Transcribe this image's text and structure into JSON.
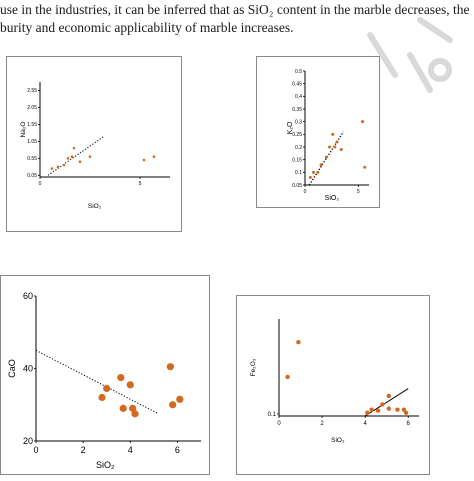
{
  "paragraph": {
    "line1": "use in the industries, it can be inferred that as SiO₂ content in the marble decreases, the",
    "line2": "burity and economic applicability of marble increases."
  },
  "colors": {
    "point": "#d2691e",
    "axis": "#000000",
    "frame": "#8a8a8a",
    "trend": "#000000"
  },
  "chart_data": [
    {
      "type": "scatter",
      "title": "",
      "xlabel": "SiO₂",
      "ylabel": "Na₂O",
      "xlim": [
        0,
        6.5
      ],
      "ylim": [
        0,
        2.8
      ],
      "xticks": [
        "0",
        "5"
      ],
      "yticks": [
        "0.05",
        "0.55",
        "1.05",
        "1.55",
        "2.05",
        "2.55"
      ],
      "grid": false,
      "series": [
        {
          "values": [
            [
              0.6,
              0.25
            ],
            [
              0.9,
              0.3
            ],
            [
              1.2,
              0.35
            ],
            [
              1.4,
              0.55
            ],
            [
              1.6,
              0.6
            ],
            [
              1.7,
              0.85
            ],
            [
              2.0,
              0.45
            ],
            [
              2.5,
              0.6
            ],
            [
              5.2,
              0.5
            ],
            [
              5.7,
              0.6
            ]
          ]
        }
      ],
      "trendline": {
        "style": "dotted",
        "x": [
          0.4,
          3.2
        ],
        "y": [
          0.05,
          1.2
        ]
      }
    },
    {
      "type": "scatter",
      "title": "",
      "xlabel": "SiO₂",
      "ylabel": "K₂O",
      "xlim": [
        0,
        6
      ],
      "ylim": [
        0.05,
        0.5
      ],
      "xticks": [
        "0",
        "5"
      ],
      "yticks": [
        "0.05",
        "0.1",
        "0.15",
        "0.2",
        "0.25",
        "0.3",
        "0.35",
        "0.4",
        "0.45",
        "0.5"
      ],
      "grid": false,
      "series": [
        {
          "values": [
            [
              0.5,
              0.08
            ],
            [
              0.8,
              0.1
            ],
            [
              1.2,
              0.1
            ],
            [
              1.5,
              0.13
            ],
            [
              2.0,
              0.16
            ],
            [
              2.3,
              0.2
            ],
            [
              2.6,
              0.25
            ],
            [
              2.8,
              0.2
            ],
            [
              3.0,
              0.22
            ],
            [
              3.4,
              0.19
            ],
            [
              5.4,
              0.3
            ],
            [
              5.6,
              0.12
            ]
          ]
        }
      ],
      "trendline": {
        "style": "dotted",
        "x": [
          0.4,
          3.6
        ],
        "y": [
          0.05,
          0.26
        ]
      }
    },
    {
      "type": "scatter",
      "title": "",
      "xlabel": "SiO₂",
      "ylabel": "CaO",
      "xlim": [
        0,
        7
      ],
      "ylim": [
        20,
        60
      ],
      "xticks": [
        "0",
        "2",
        "4",
        "6"
      ],
      "yticks": [
        "20",
        "40",
        "60"
      ],
      "grid": false,
      "series": [
        {
          "values": [
            [
              2.8,
              32
            ],
            [
              3.0,
              34.5
            ],
            [
              3.6,
              37.5
            ],
            [
              3.7,
              29
            ],
            [
              4.0,
              35.5
            ],
            [
              4.1,
              29
            ],
            [
              4.2,
              27.5
            ],
            [
              5.7,
              40.5
            ],
            [
              5.8,
              30
            ],
            [
              6.1,
              31.5
            ]
          ]
        }
      ],
      "trendline": {
        "style": "dotted",
        "x": [
          0,
          5.2
        ],
        "y": [
          45,
          27.5
        ]
      }
    },
    {
      "type": "scatter",
      "title": "",
      "xlabel": "SiO₂",
      "ylabel": "Fe₂O₃",
      "xlim": [
        0,
        6.5
      ],
      "ylim": [
        0.08,
        1.0
      ],
      "xticks": [
        "0",
        "2",
        "4",
        "6"
      ],
      "yticks": [
        "0.1"
      ],
      "grid": false,
      "series": [
        {
          "values": [
            [
              0.4,
              0.45
            ],
            [
              0.9,
              0.78
            ],
            [
              4.1,
              0.11
            ],
            [
              4.3,
              0.14
            ],
            [
              4.6,
              0.13
            ],
            [
              4.8,
              0.19
            ],
            [
              5.1,
              0.15
            ],
            [
              5.1,
              0.27
            ],
            [
              5.5,
              0.14
            ],
            [
              5.8,
              0.14
            ],
            [
              5.9,
              0.11
            ]
          ]
        }
      ],
      "trendline": {
        "style": "solid",
        "x": [
          4.0,
          6.0
        ],
        "y": [
          0.08,
          0.34
        ]
      }
    }
  ]
}
